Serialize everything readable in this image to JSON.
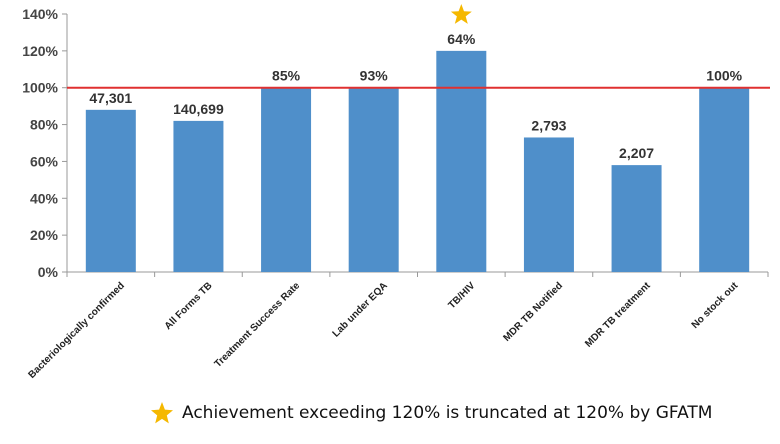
{
  "chart_data": {
    "type": "bar",
    "categories": [
      "Bacteriologically confirmed",
      "All Forms TB",
      "Treatment Success Rate",
      "Lab under EQA",
      "TB/HIV",
      "MDR TB Notified",
      "MDR TB treatment",
      "No stock out"
    ],
    "values": [
      88,
      82,
      100,
      100,
      120,
      73,
      58,
      100
    ],
    "data_labels": [
      "47,301",
      "140,699",
      "85%",
      "93%",
      "64%",
      "2,793",
      "2,207",
      "100%"
    ],
    "y_unit": "%",
    "ylim": [
      0,
      140
    ],
    "yticks": [
      0,
      20,
      40,
      60,
      80,
      100,
      120,
      140
    ],
    "ytick_labels": [
      "0%",
      "20%",
      "40%",
      "60%",
      "80%",
      "100%",
      "120%",
      "140%"
    ],
    "target_line": 100,
    "starred_category": "TB/HIV",
    "grid": false,
    "title": "",
    "xlabel": "",
    "ylabel": ""
  },
  "colors": {
    "bar": "#4f8fca",
    "target_line": "#e03030",
    "star": "#f5b800",
    "axis": "#999999"
  },
  "footnote": {
    "icon": "star-icon",
    "text": "Achievement exceeding 120% is truncated at 120% by GFATM"
  }
}
